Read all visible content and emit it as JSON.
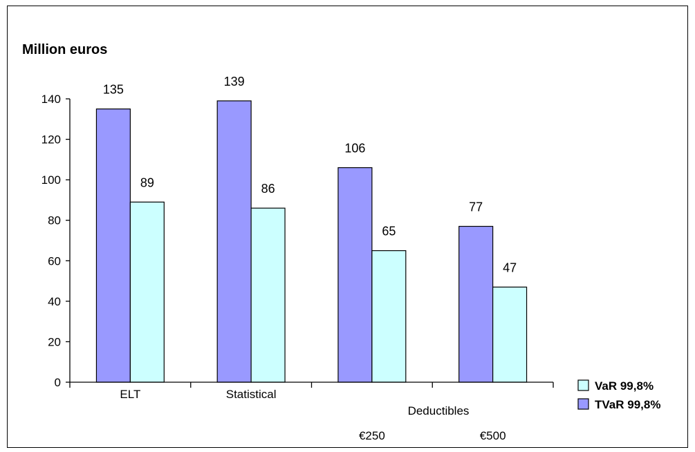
{
  "chart_data": {
    "type": "bar",
    "ylabel": "Million euros",
    "ylim": [
      0,
      140
    ],
    "yticks": [
      0,
      20,
      40,
      60,
      80,
      100,
      120,
      140
    ],
    "categories": [
      "ELT",
      "Statistical",
      "€250",
      "€500"
    ],
    "group_label": "Deductibles",
    "series": [
      {
        "name": "TVaR 99,8%",
        "color": "#9999ff",
        "values": [
          135,
          139,
          106,
          77
        ]
      },
      {
        "name": "VaR 99,8%",
        "color": "#ccffff",
        "values": [
          89,
          86,
          65,
          47
        ]
      }
    ],
    "legend_position": "right",
    "grid": false
  }
}
